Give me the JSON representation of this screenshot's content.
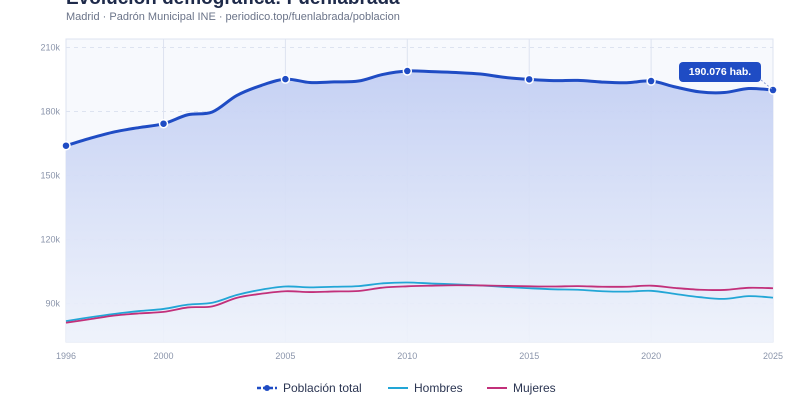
{
  "header": {
    "title": "Evolución demográfica: Fuenlabrada",
    "subtitle": "Madrid · Padrón Municipal INE · periodico.top/fuenlabrada/poblacion"
  },
  "colors": {
    "total": "#1f4cc4",
    "hombres": "#22a6d6",
    "mujeres": "#c2307a",
    "area_fill": "#c9d4f3",
    "grid": "#dde3f0"
  },
  "chart_data": {
    "type": "line",
    "title": "Evolución demográfica: Fuenlabrada",
    "xlabel": "",
    "ylabel": "",
    "x": [
      1996,
      1997,
      1998,
      1999,
      2000,
      2001,
      2002,
      2003,
      2004,
      2005,
      2006,
      2007,
      2008,
      2009,
      2010,
      2011,
      2012,
      2013,
      2014,
      2015,
      2016,
      2017,
      2018,
      2019,
      2020,
      2021,
      2022,
      2023,
      2024,
      2025
    ],
    "ylim": [
      72000,
      214000
    ],
    "xlim": [
      1996,
      2025
    ],
    "y_ticks": [
      90000,
      120000,
      150000,
      180000,
      210000
    ],
    "y_tick_labels": [
      "90k",
      "120k",
      "150k",
      "180k",
      "210k"
    ],
    "x_ticks": [
      1996,
      2000,
      2005,
      2010,
      2015,
      2020,
      2025
    ],
    "x_tick_labels": [
      "1996",
      "2000",
      "2005",
      "2010",
      "2015",
      "2020",
      "2025"
    ],
    "grid": true,
    "legend_position": "bottom",
    "series": [
      {
        "name": "Población total",
        "key": "total",
        "values": [
          164000,
          167500,
          170500,
          172500,
          174300,
          178500,
          179800,
          187500,
          192200,
          195200,
          193600,
          193900,
          194300,
          197400,
          199000,
          198700,
          198300,
          197600,
          196000,
          195100,
          194500,
          194600,
          193800,
          193500,
          194300,
          191500,
          189200,
          188900,
          190800,
          190076
        ],
        "markers_at": [
          1996,
          2000,
          2005,
          2010,
          2015,
          2020,
          2025
        ]
      },
      {
        "name": "Hombres",
        "key": "hombres",
        "values": [
          81800,
          83600,
          85200,
          86500,
          87500,
          89500,
          90400,
          94000,
          96500,
          98000,
          97600,
          97900,
          98200,
          99500,
          99900,
          99400,
          99000,
          98500,
          97800,
          97200,
          96700,
          96500,
          95800,
          95600,
          96000,
          94500,
          93000,
          92200,
          93500,
          92800
        ]
      },
      {
        "name": "Mujeres",
        "key": "mujeres",
        "values": [
          81000,
          82700,
          84400,
          85400,
          86100,
          88200,
          88700,
          92700,
          94600,
          95800,
          95400,
          95700,
          95900,
          97500,
          98100,
          98400,
          98600,
          98500,
          98300,
          98100,
          98000,
          98200,
          97900,
          97900,
          98400,
          97300,
          96500,
          96400,
          97400,
          97200
        ]
      }
    ],
    "annotation": {
      "x": 2025,
      "label": "190.076 hab."
    }
  }
}
